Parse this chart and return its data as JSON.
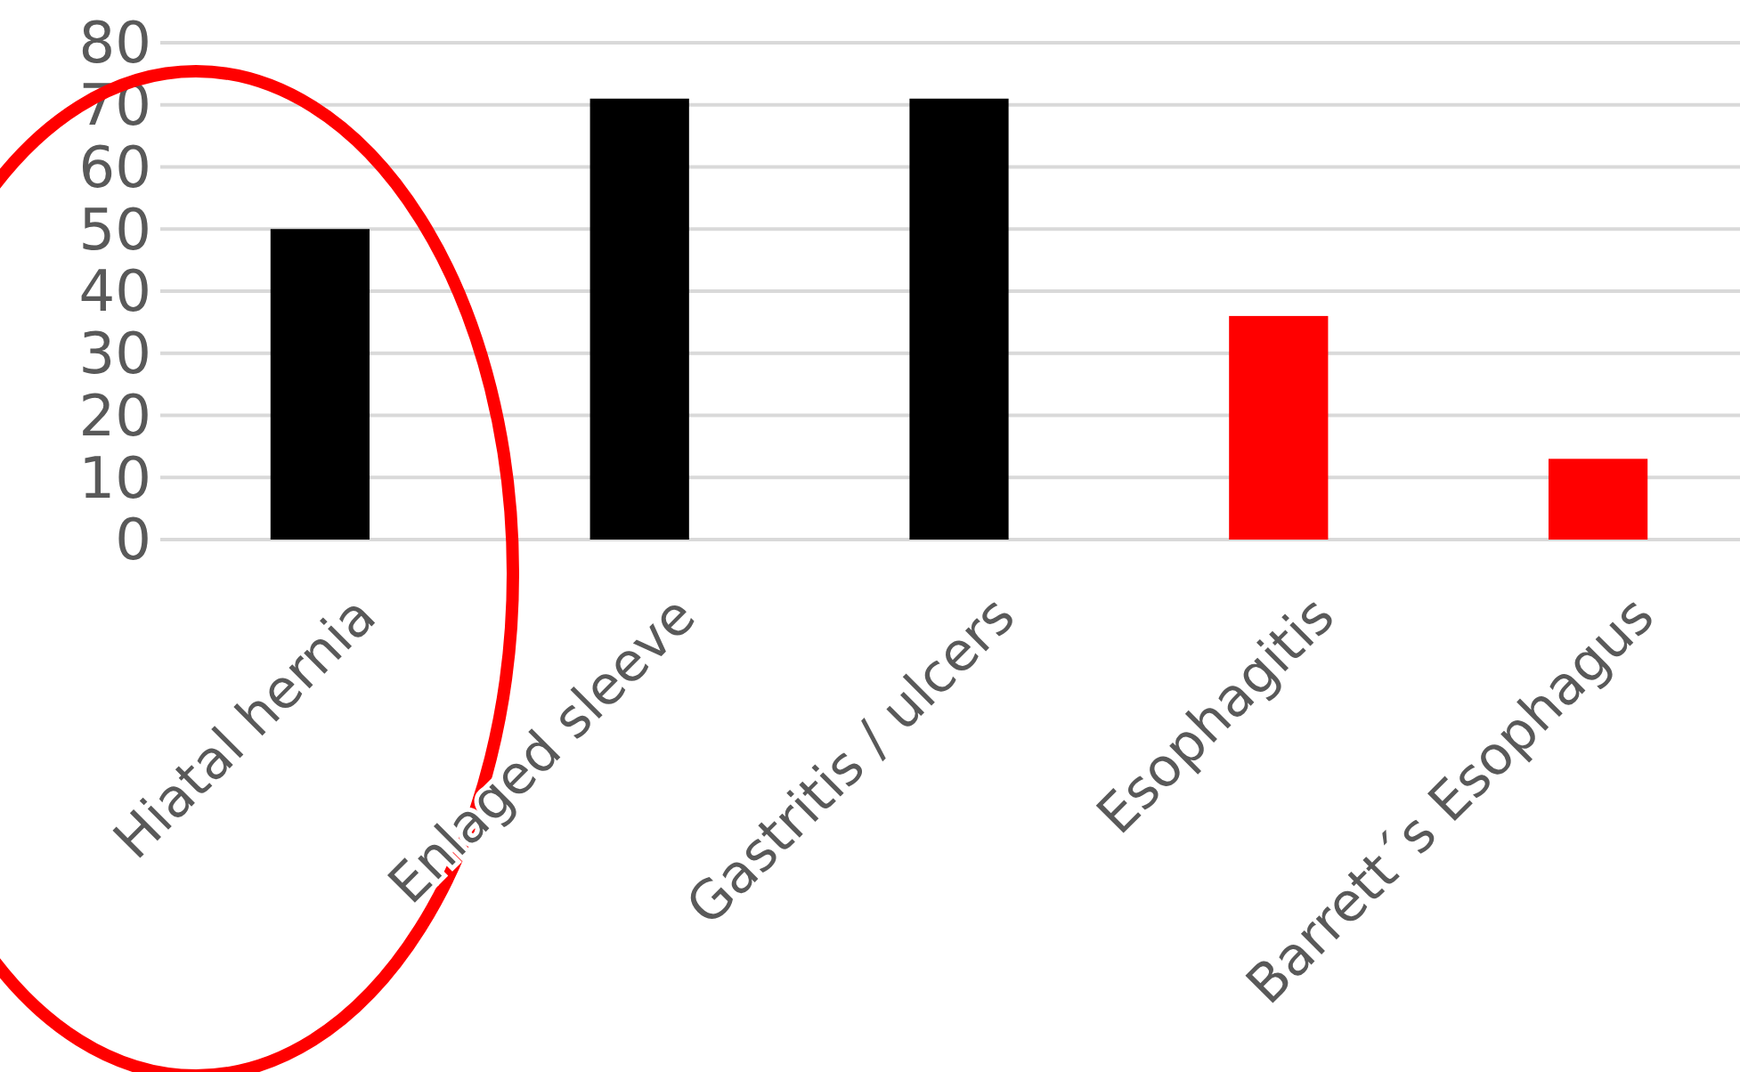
{
  "chart_data": {
    "type": "bar",
    "categories": [
      "Hiatal hernia",
      "Enlaged sleeve",
      "Gastritis / ulcers",
      "Esophagitis",
      "Barrett´s Esophagus"
    ],
    "values": [
      50,
      71,
      71,
      36,
      13
    ],
    "colors": [
      "#000000",
      "#000000",
      "#000000",
      "#ff0000",
      "#ff0000"
    ],
    "ylim": [
      0,
      80
    ],
    "yticks": [
      0,
      10,
      20,
      30,
      40,
      50,
      60,
      70,
      80
    ],
    "grid": "y"
  }
}
